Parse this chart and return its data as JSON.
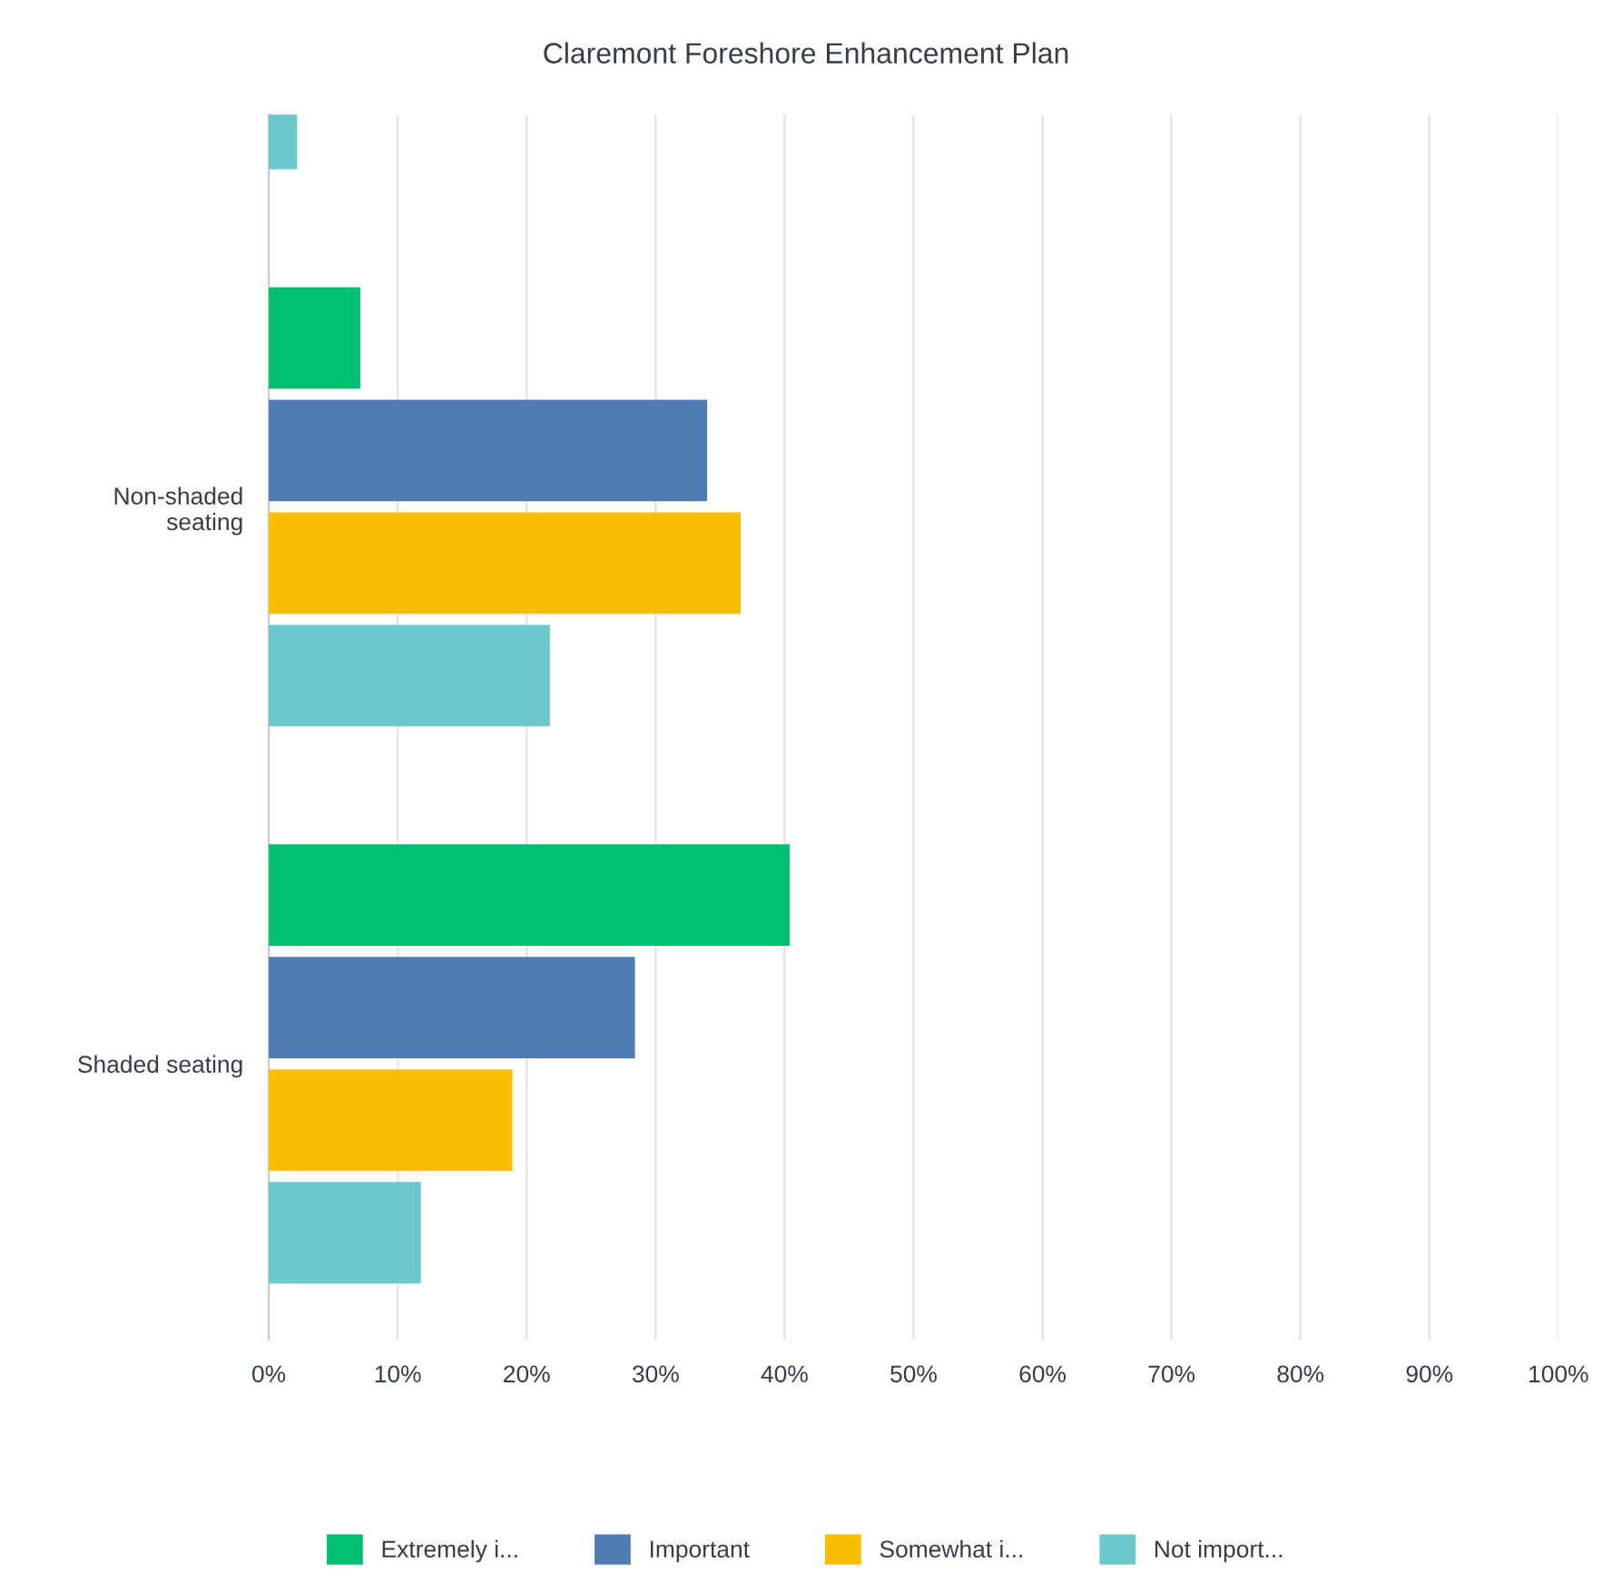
{
  "chart_data": {
    "type": "bar",
    "orientation": "horizontal",
    "title": "Claremont Foreshore Enhancement Plan",
    "categories": [
      null,
      "Non-shaded seating",
      "Shaded seating"
    ],
    "series": [
      {
        "name": "Extremely i...",
        "color": "#00bf6f",
        "values": [
          null,
          7.1,
          40.4
        ]
      },
      {
        "name": "Important",
        "color": "#507cb6",
        "values": [
          null,
          34.0,
          28.4
        ]
      },
      {
        "name": "Somewhat i...",
        "color": "#f9be00",
        "values": [
          null,
          36.6,
          18.9
        ]
      },
      {
        "name": "Not import...",
        "color": "#6bc8cd",
        "values": [
          2.2,
          21.8,
          11.8
        ]
      }
    ],
    "xlim": [
      0,
      100
    ],
    "xticks": [
      {
        "value": 0,
        "label": "0%"
      },
      {
        "value": 10,
        "label": "10%"
      },
      {
        "value": 20,
        "label": "20%"
      },
      {
        "value": 30,
        "label": "30%"
      },
      {
        "value": 40,
        "label": "40%"
      },
      {
        "value": 50,
        "label": "50%"
      },
      {
        "value": 60,
        "label": "60%"
      },
      {
        "value": 70,
        "label": "70%"
      },
      {
        "value": 80,
        "label": "80%"
      },
      {
        "value": 90,
        "label": "90%"
      },
      {
        "value": 100,
        "label": "100%"
      }
    ],
    "grid": "x",
    "legend": "bottom"
  }
}
